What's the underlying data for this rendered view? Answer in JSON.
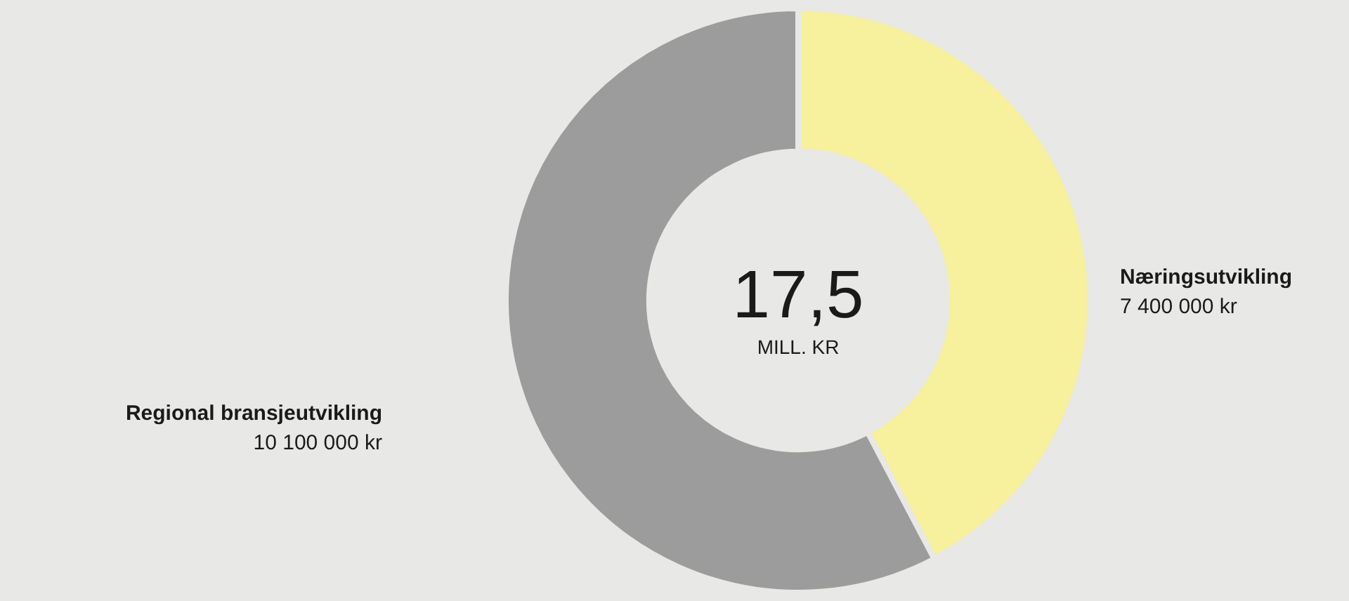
{
  "chart_data": {
    "type": "donut",
    "categories": [
      "Næringsutvikling",
      "Regional bransjeutvikling"
    ],
    "values": [
      7400000,
      10100000
    ],
    "value_labels": [
      "7 400 000 kr",
      "10 100 000 kr"
    ],
    "colors": [
      "#f7f09c",
      "#9c9c9c"
    ],
    "annotations": [
      "17,5",
      "MILL. KR"
    ],
    "legend": false
  }
}
